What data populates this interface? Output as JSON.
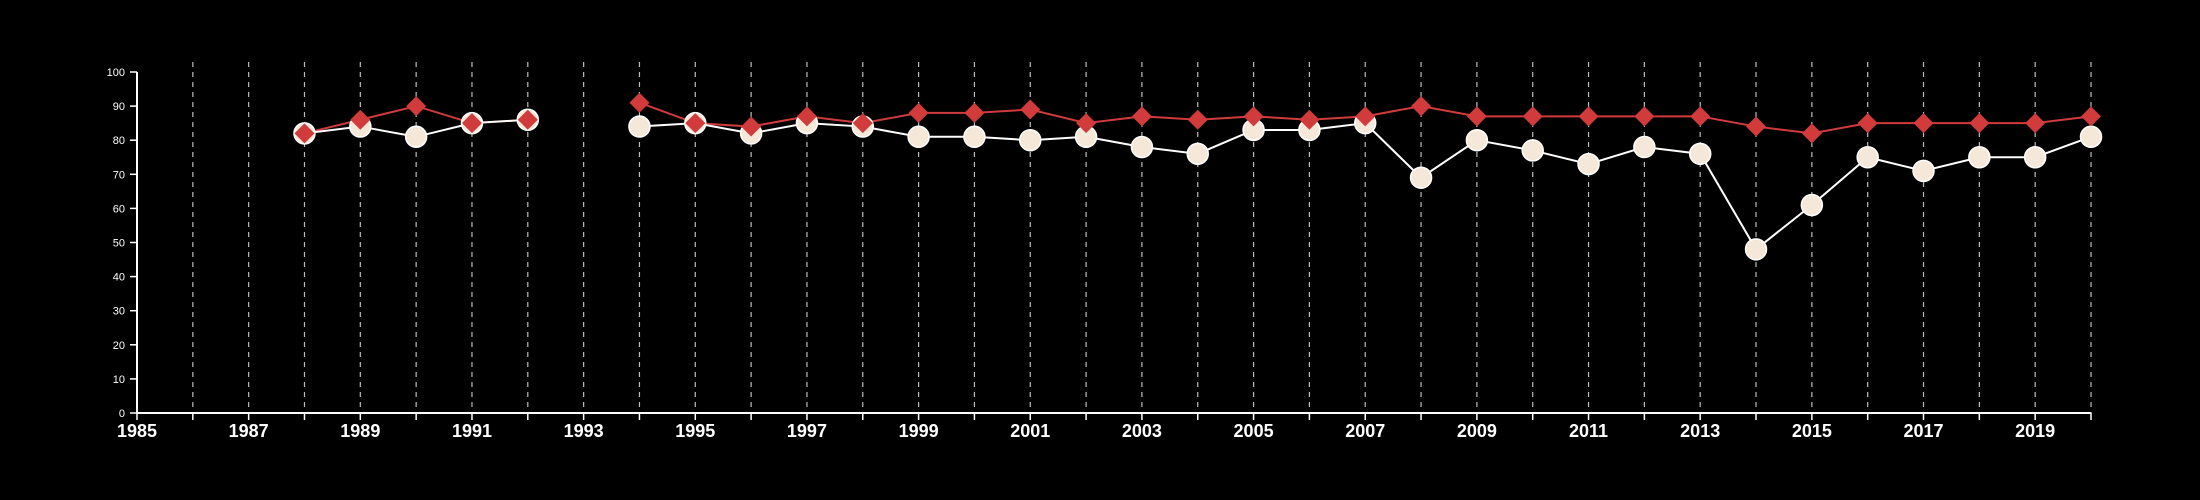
{
  "chart_data": {
    "type": "line",
    "title": "",
    "xlabel": "",
    "ylabel": "",
    "xlim": [
      1985,
      2020
    ],
    "ylim": [
      0,
      100
    ],
    "yticks": [
      0,
      10,
      20,
      30,
      40,
      50,
      60,
      70,
      80,
      90,
      100
    ],
    "xticks_labeled": [
      1985,
      1987,
      1989,
      1991,
      1993,
      1995,
      1997,
      1999,
      2001,
      2003,
      2005,
      2007,
      2009,
      2011,
      2013,
      2015,
      2017,
      2019
    ],
    "vertical_grid_years": [
      1986,
      1987,
      1988,
      1989,
      1990,
      1991,
      1992,
      1993,
      1994,
      1995,
      1996,
      1997,
      1998,
      1999,
      2000,
      2001,
      2002,
      2003,
      2004,
      2005,
      2006,
      2007,
      2008,
      2009,
      2010,
      2011,
      2012,
      2013,
      2014,
      2015,
      2016,
      2017,
      2018,
      2019,
      2020
    ],
    "grid": "vertical dashed",
    "legend": "none",
    "background_color": "#000000",
    "series": [
      {
        "marker": "diamond",
        "color": "#d13b3b",
        "points": [
          {
            "x": 1988,
            "y": 82
          },
          {
            "x": 1989,
            "y": 86
          },
          {
            "x": 1990,
            "y": 90
          },
          {
            "x": 1991,
            "y": 85
          },
          {
            "x": 1992,
            "y": 86
          },
          {
            "x": 1994,
            "y": 91
          },
          {
            "x": 1995,
            "y": 85
          },
          {
            "x": 1996,
            "y": 84
          },
          {
            "x": 1997,
            "y": 87
          },
          {
            "x": 1998,
            "y": 85
          },
          {
            "x": 1999,
            "y": 88
          },
          {
            "x": 2000,
            "y": 88
          },
          {
            "x": 2001,
            "y": 89
          },
          {
            "x": 2002,
            "y": 85
          },
          {
            "x": 2003,
            "y": 87
          },
          {
            "x": 2004,
            "y": 86
          },
          {
            "x": 2005,
            "y": 87
          },
          {
            "x": 2006,
            "y": 86
          },
          {
            "x": 2007,
            "y": 87
          },
          {
            "x": 2008,
            "y": 90
          },
          {
            "x": 2009,
            "y": 87
          },
          {
            "x": 2010,
            "y": 87
          },
          {
            "x": 2011,
            "y": 87
          },
          {
            "x": 2012,
            "y": 87
          },
          {
            "x": 2013,
            "y": 87
          },
          {
            "x": 2014,
            "y": 84
          },
          {
            "x": 2015,
            "y": 82
          },
          {
            "x": 2016,
            "y": 85
          },
          {
            "x": 2017,
            "y": 85
          },
          {
            "x": 2018,
            "y": 85
          },
          {
            "x": 2019,
            "y": 85
          },
          {
            "x": 2020,
            "y": 87
          }
        ]
      },
      {
        "marker": "circle",
        "color": "#f5e8d8",
        "line_color": "#ffffff",
        "points": [
          {
            "x": 1988,
            "y": 82
          },
          {
            "x": 1989,
            "y": 84
          },
          {
            "x": 1990,
            "y": 81
          },
          {
            "x": 1991,
            "y": 85
          },
          {
            "x": 1992,
            "y": 86
          },
          {
            "x": 1994,
            "y": 84
          },
          {
            "x": 1995,
            "y": 85
          },
          {
            "x": 1996,
            "y": 82
          },
          {
            "x": 1997,
            "y": 85
          },
          {
            "x": 1998,
            "y": 84
          },
          {
            "x": 1999,
            "y": 81
          },
          {
            "x": 2000,
            "y": 81
          },
          {
            "x": 2001,
            "y": 80
          },
          {
            "x": 2002,
            "y": 81
          },
          {
            "x": 2003,
            "y": 78
          },
          {
            "x": 2004,
            "y": 76
          },
          {
            "x": 2005,
            "y": 83
          },
          {
            "x": 2006,
            "y": 83
          },
          {
            "x": 2007,
            "y": 85
          },
          {
            "x": 2008,
            "y": 69
          },
          {
            "x": 2009,
            "y": 80
          },
          {
            "x": 2010,
            "y": 77
          },
          {
            "x": 2011,
            "y": 73
          },
          {
            "x": 2012,
            "y": 78
          },
          {
            "x": 2013,
            "y": 76
          },
          {
            "x": 2014,
            "y": 48
          },
          {
            "x": 2015,
            "y": 61
          },
          {
            "x": 2016,
            "y": 75
          },
          {
            "x": 2017,
            "y": 71
          },
          {
            "x": 2018,
            "y": 75
          },
          {
            "x": 2019,
            "y": 75
          },
          {
            "x": 2020,
            "y": 81
          }
        ]
      }
    ]
  }
}
